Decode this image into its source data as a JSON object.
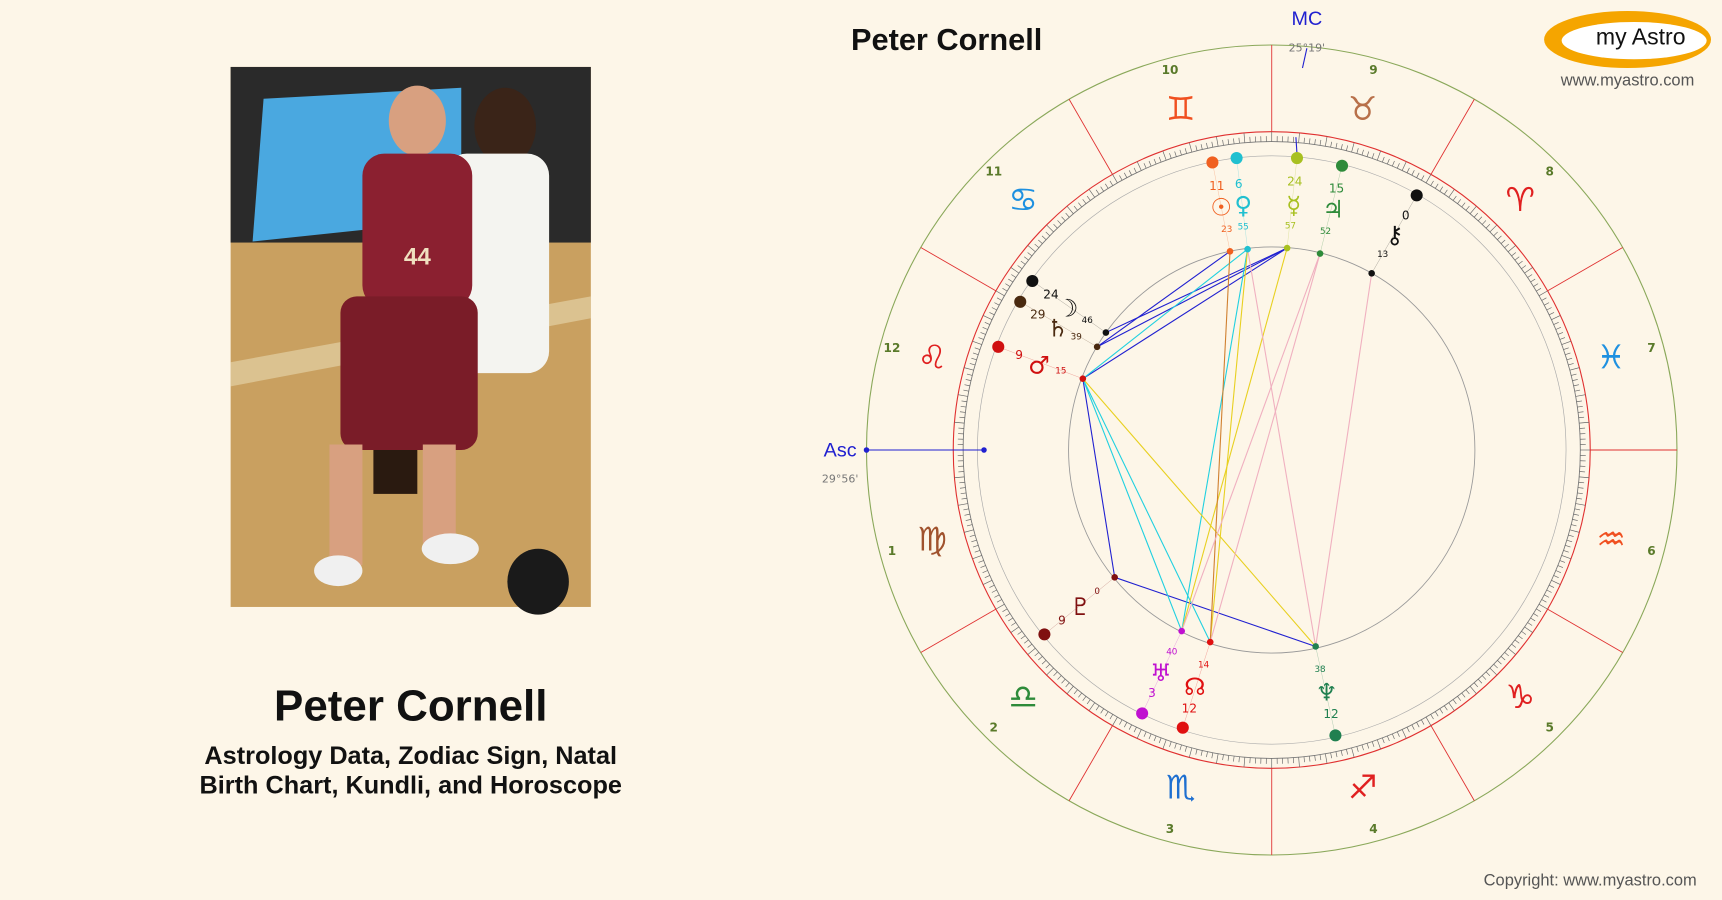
{
  "profile": {
    "name": "Peter Cornell",
    "subtitle": [
      "Astrology Data, Zodiac Sign, Natal",
      "Birth Chart, Kundli, and Horoscope"
    ]
  },
  "logo": {
    "text": "my Astro",
    "url": "www.myastro.com"
  },
  "chart": {
    "title": "Peter Cornell",
    "mc": {
      "label": "MC",
      "degree": "25°19'"
    },
    "asc": {
      "label": "Asc",
      "degree": "29°56'"
    },
    "houses": [
      1,
      2,
      3,
      4,
      5,
      6,
      7,
      8,
      9,
      10,
      11,
      12
    ],
    "signs": [
      {
        "glyph": "♍",
        "color": "#a0522d"
      },
      {
        "glyph": "♎",
        "color": "#2e8b3a"
      },
      {
        "glyph": "♏",
        "color": "#1e6fd0"
      },
      {
        "glyph": "♐",
        "color": "#e02020"
      },
      {
        "glyph": "♑",
        "color": "#e02020"
      },
      {
        "glyph": "♒",
        "color": "#f05020"
      },
      {
        "glyph": "♓",
        "color": "#1e90e0"
      },
      {
        "glyph": "♈",
        "color": "#e02020"
      },
      {
        "glyph": "♉",
        "color": "#b8704a"
      },
      {
        "glyph": "♊",
        "color": "#f05020"
      },
      {
        "glyph": "♋",
        "color": "#1e90e0"
      },
      {
        "glyph": "♌",
        "color": "#e02020"
      }
    ],
    "planets": [
      {
        "glyph": "☉",
        "degree": 11,
        "minute": 23,
        "color": "#f06020"
      },
      {
        "glyph": "♀",
        "degree": 6,
        "minute": 55,
        "color": "#20c0d0"
      },
      {
        "glyph": "☿",
        "degree": 24,
        "minute": 57,
        "color": "#a8c020"
      },
      {
        "glyph": "♃",
        "degree": 15,
        "minute": 52,
        "color": "#2e8b3a"
      },
      {
        "glyph": "⚷",
        "degree": 0,
        "minute": 13,
        "color": "#111111"
      },
      {
        "glyph": "☽",
        "degree": 24,
        "minute": 46,
        "color": "#111111"
      },
      {
        "glyph": "♄",
        "degree": 29,
        "minute": 39,
        "color": "#4a2a10"
      },
      {
        "glyph": "♂",
        "degree": 9,
        "minute": 15,
        "color": "#d01010"
      },
      {
        "glyph": "♇",
        "degree": 9,
        "minute": 0,
        "color": "#801010"
      },
      {
        "glyph": "♅",
        "degree": 3,
        "minute": 40,
        "color": "#c010d0"
      },
      {
        "glyph": "☊",
        "degree": 12,
        "minute": 14,
        "color": "#e01010"
      },
      {
        "glyph": "♆",
        "degree": 12,
        "minute": 38,
        "color": "#208050"
      }
    ]
  },
  "copyright": "Copyright: www.myastro.com"
}
